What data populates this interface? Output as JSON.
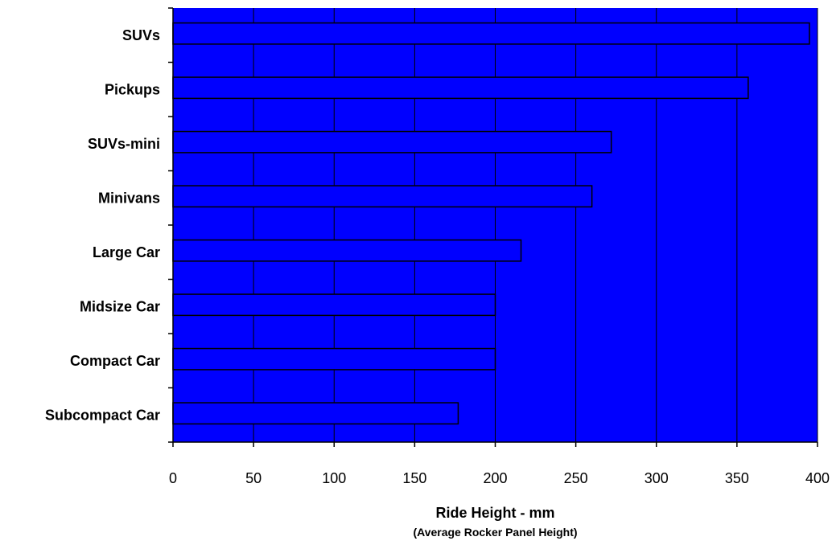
{
  "chart_data": {
    "type": "bar",
    "orientation": "horizontal",
    "categories": [
      "SUVs",
      "Pickups",
      "SUVs-mini",
      "Minivans",
      "Large Car",
      "Midsize Car",
      "Compact Car",
      "Subcompact Car"
    ],
    "values": [
      395,
      357,
      272,
      260,
      216,
      200,
      200,
      177
    ],
    "xlabel": "Ride Height - mm",
    "xsublabel": "(Average Rocker Panel Height)",
    "xlim": [
      0,
      400
    ],
    "xticks": [
      0,
      50,
      100,
      150,
      200,
      250,
      300,
      350,
      400
    ],
    "grid": "vertical",
    "legend": "none",
    "colors": {
      "plot_background": "#0000ff",
      "bar_fill": "#0000ff",
      "bar_stroke": "#000000",
      "gridline": "#000000"
    }
  }
}
